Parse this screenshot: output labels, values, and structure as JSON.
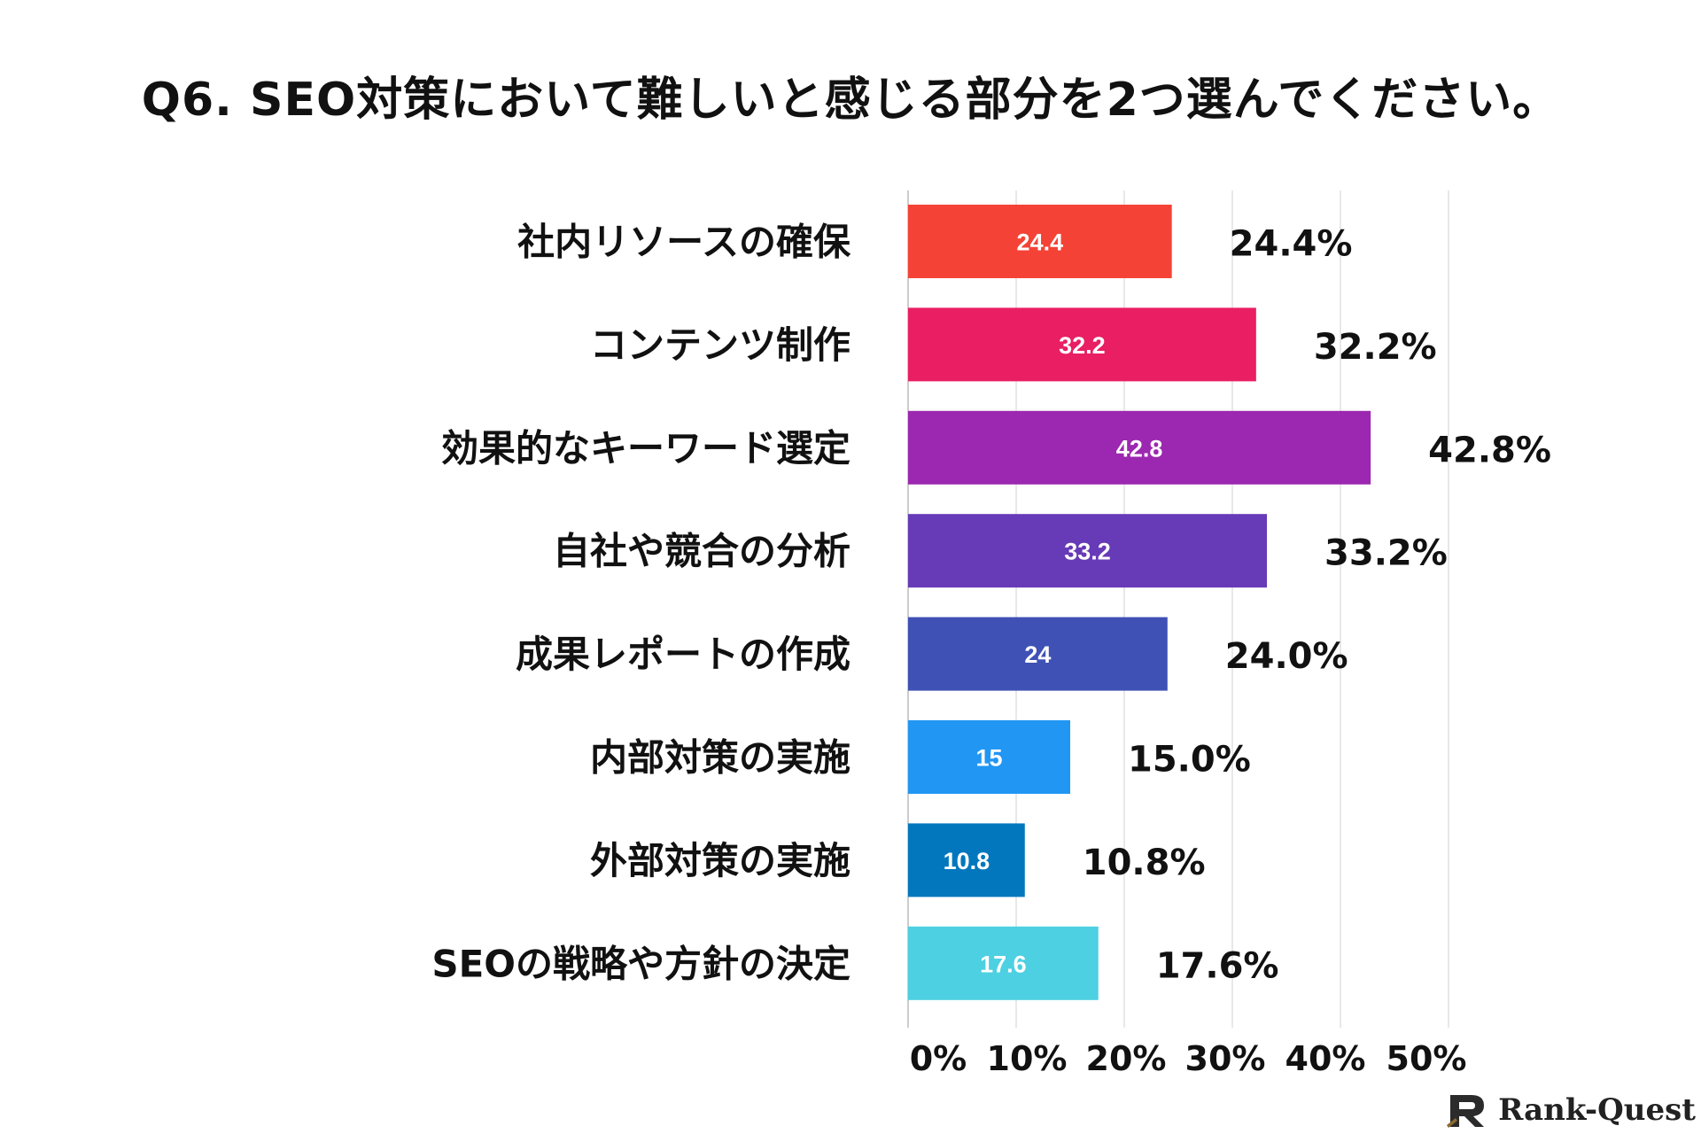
{
  "chart_data": {
    "type": "bar",
    "orientation": "horizontal",
    "title": "Q6. SEO対策において難しいと感じる部分を2つ選んでください。",
    "categories": [
      "社内リソースの確保",
      "コンテンツ制作",
      "効果的なキーワード選定",
      "自社や競合の分析",
      "成果レポートの作成",
      "内部対策の実施",
      "外部対策の実施",
      "SEOの戦略や方針の決定"
    ],
    "values": [
      24.4,
      32.2,
      42.8,
      33.2,
      24,
      15,
      10.8,
      17.6
    ],
    "bar_labels": [
      "24.4",
      "32.2",
      "42.8",
      "33.2",
      "24",
      "15",
      "10.8",
      "17.6"
    ],
    "pct_labels": [
      "24.4%",
      "32.2%",
      "42.8%",
      "33.2%",
      "24.0%",
      "15.0%",
      "10.8%",
      "17.6%"
    ],
    "colors": [
      "#f44336",
      "#e91e63",
      "#9c27b0",
      "#673ab7",
      "#3f51b5",
      "#2196f3",
      "#0277bd",
      "#4dd0e1"
    ],
    "x_ticks": [
      0,
      10,
      20,
      30,
      40,
      50
    ],
    "x_tick_labels": [
      "0%",
      "10%",
      "20%",
      "30%",
      "40%",
      "50%"
    ],
    "xlim": [
      0,
      50
    ],
    "grid": true,
    "xlabel": "",
    "ylabel": ""
  },
  "brand": {
    "name": "Rank-Quest",
    "logo_icon": "rank-quest-logo-icon"
  }
}
